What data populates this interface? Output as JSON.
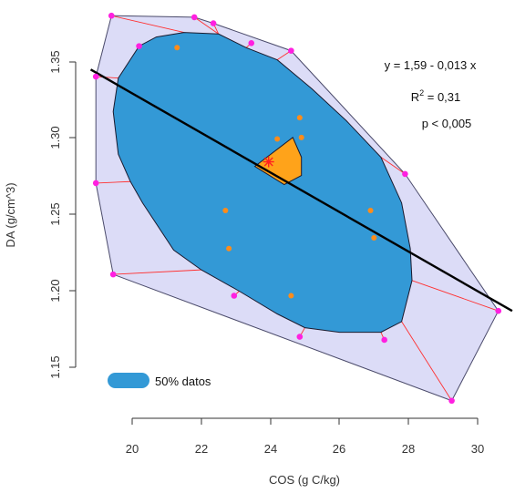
{
  "chart_data": {
    "type": "scatter",
    "title": "",
    "xlabel": "COS (g C/kg)",
    "ylabel": "DA (g/cm^3)",
    "xlim": [
      18.8,
      31.0
    ],
    "ylim": [
      1.13,
      1.389
    ],
    "x_ticks": [
      "20",
      "22",
      "24",
      "26",
      "28",
      "30"
    ],
    "y_ticks": [
      "1.15",
      "1.20",
      "1.25",
      "1.30",
      "1.35"
    ],
    "grid": false,
    "legend": {
      "position": "bottom-left",
      "entries": [
        {
          "label": "50% datos",
          "color": "#3399d6"
        }
      ]
    },
    "annotations": {
      "equation": "y = 1,59 - 0,013 x",
      "r2_base": "R",
      "r2_sup": "2",
      "r2_value": " = 0,31",
      "pvalue": "p < 0,005"
    },
    "colors": {
      "hull_fill": "#dcdcf7",
      "hull_edge": "#4a4a6a",
      "bag_fill": "#3399d6",
      "bag_edge": "#1a1a2e",
      "loop_spoke": "#ff3030",
      "outlier": "#ff20e0",
      "inner_point": "#ff8c1a",
      "median_fill": "#ffa31a",
      "median_star": "#ff2020",
      "fit_line": "#000000"
    },
    "regression": {
      "intercept": 1.59,
      "slope": -0.013
    },
    "median": [
      23.95,
      1.285
    ],
    "loop_hull": [
      [
        19.4,
        1.381
      ],
      [
        21.8,
        1.38
      ],
      [
        22.35,
        1.376
      ],
      [
        24.6,
        1.358
      ],
      [
        27.9,
        1.277
      ],
      [
        30.6,
        1.187
      ],
      [
        29.25,
        1.128
      ],
      [
        19.45,
        1.211
      ],
      [
        18.95,
        1.271
      ],
      [
        18.95,
        1.341
      ]
    ],
    "bag_polygon": [
      [
        21.5,
        1.37
      ],
      [
        22.5,
        1.369
      ],
      [
        23.3,
        1.36
      ],
      [
        24.2,
        1.352
      ],
      [
        25.2,
        1.333
      ],
      [
        26.2,
        1.312
      ],
      [
        27.2,
        1.288
      ],
      [
        27.8,
        1.258
      ],
      [
        28.05,
        1.228
      ],
      [
        28.1,
        1.207
      ],
      [
        27.8,
        1.18
      ],
      [
        27.2,
        1.173
      ],
      [
        26.0,
        1.173
      ],
      [
        25.0,
        1.176
      ],
      [
        24.2,
        1.185
      ],
      [
        23.1,
        1.2
      ],
      [
        22.0,
        1.214
      ],
      [
        21.2,
        1.227
      ],
      [
        20.3,
        1.258
      ],
      [
        19.95,
        1.272
      ],
      [
        19.6,
        1.29
      ],
      [
        19.45,
        1.318
      ],
      [
        19.6,
        1.34
      ],
      [
        20.2,
        1.361
      ],
      [
        20.7,
        1.367
      ]
    ],
    "median_polygon": [
      [
        23.55,
        1.282
      ],
      [
        24.65,
        1.301
      ],
      [
        24.9,
        1.288
      ],
      [
        24.9,
        1.276
      ],
      [
        24.4,
        1.27
      ]
    ],
    "outliers": [
      [
        19.4,
        1.381
      ],
      [
        21.8,
        1.38
      ],
      [
        22.35,
        1.376
      ],
      [
        23.45,
        1.363
      ],
      [
        24.6,
        1.358
      ],
      [
        20.2,
        1.361
      ],
      [
        18.95,
        1.341
      ],
      [
        18.95,
        1.271
      ],
      [
        19.45,
        1.211
      ],
      [
        22.95,
        1.197
      ],
      [
        27.9,
        1.277
      ],
      [
        30.6,
        1.187
      ],
      [
        24.85,
        1.17
      ],
      [
        27.3,
        1.168
      ],
      [
        29.25,
        1.128
      ]
    ],
    "inner_points": [
      [
        21.3,
        1.36
      ],
      [
        24.85,
        1.314
      ],
      [
        24.2,
        1.3
      ],
      [
        24.9,
        1.301
      ],
      [
        22.7,
        1.253
      ],
      [
        22.8,
        1.228
      ],
      [
        26.9,
        1.253
      ],
      [
        27.0,
        1.235
      ],
      [
        24.6,
        1.197
      ]
    ],
    "spokes": [
      [
        [
          22.0,
          1.214
        ],
        [
          19.45,
          1.211
        ]
      ],
      [
        [
          23.1,
          1.2
        ],
        [
          22.95,
          1.197
        ]
      ],
      [
        [
          19.95,
          1.272
        ],
        [
          18.95,
          1.271
        ]
      ],
      [
        [
          19.6,
          1.34
        ],
        [
          18.95,
          1.341
        ]
      ],
      [
        [
          20.2,
          1.361
        ],
        [
          20.2,
          1.361
        ]
      ],
      [
        [
          21.5,
          1.37
        ],
        [
          19.4,
          1.381
        ]
      ],
      [
        [
          22.5,
          1.369
        ],
        [
          21.8,
          1.38
        ]
      ],
      [
        [
          22.5,
          1.369
        ],
        [
          22.35,
          1.376
        ]
      ],
      [
        [
          23.3,
          1.36
        ],
        [
          23.45,
          1.363
        ]
      ],
      [
        [
          24.2,
          1.352
        ],
        [
          24.6,
          1.358
        ]
      ],
      [
        [
          27.2,
          1.288
        ],
        [
          27.9,
          1.277
        ]
      ],
      [
        [
          28.1,
          1.207
        ],
        [
          30.6,
          1.187
        ]
      ],
      [
        [
          25.0,
          1.176
        ],
        [
          24.85,
          1.17
        ]
      ],
      [
        [
          27.2,
          1.173
        ],
        [
          27.3,
          1.168
        ]
      ],
      [
        [
          27.8,
          1.18
        ],
        [
          29.25,
          1.128
        ]
      ]
    ]
  }
}
